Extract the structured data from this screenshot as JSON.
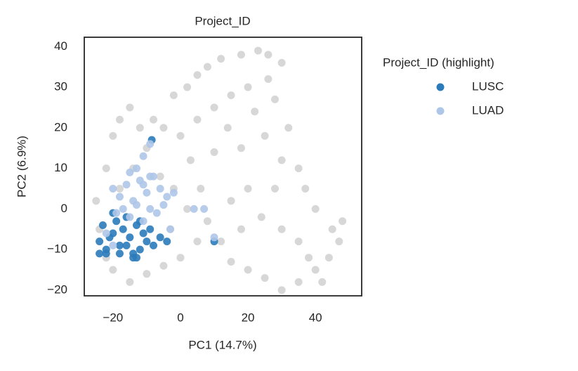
{
  "chart_data": {
    "type": "scatter",
    "title": "Project_ID",
    "xlabel": "PC1 (14.7%)",
    "ylabel": "PC2 (6.9%)",
    "legend_title": "Project_ID (highlight)",
    "xlim": [
      -28.5,
      53.7
    ],
    "ylim": [
      -21.4,
      42.3
    ],
    "xticks": [
      {
        "value": -20,
        "label": "−20"
      },
      0,
      20,
      40
    ],
    "yticks": [
      {
        "value": -20,
        "label": "−20"
      },
      {
        "value": -10,
        "label": "−10"
      },
      0,
      10,
      20,
      30,
      40
    ],
    "series": [
      {
        "color": "#d3d3d3",
        "x": [
          -25,
          -24,
          -22,
          -20,
          -18,
          -15,
          -12,
          -10,
          -8,
          -5,
          -20,
          -15,
          -10,
          -5,
          0,
          -22,
          -18,
          -14,
          -6,
          -2,
          -3,
          2,
          5,
          3,
          0,
          -2,
          2,
          5,
          8,
          12,
          18,
          23,
          26,
          30,
          26,
          20,
          15,
          10,
          5,
          14,
          22,
          28,
          32,
          25,
          18,
          10,
          30,
          37,
          35,
          40,
          45,
          48,
          44,
          40,
          35,
          30,
          25,
          20,
          15,
          12,
          18,
          24,
          30,
          35,
          28,
          20,
          15,
          8,
          6,
          38,
          47,
          42
        ],
        "y": [
          2,
          -5,
          10,
          18,
          22,
          25,
          20,
          15,
          22,
          20,
          -15,
          -18,
          -16,
          -14,
          -12,
          -12,
          5,
          10,
          8,
          5,
          -5,
          0,
          -8,
          12,
          18,
          28,
          30,
          33,
          35,
          37,
          38,
          39,
          38,
          36,
          32,
          30,
          28,
          25,
          22,
          20,
          24,
          27,
          20,
          18,
          15,
          14,
          12,
          5,
          10,
          0,
          -5,
          -3,
          -12,
          -15,
          -18,
          -20,
          -17,
          -15,
          -13,
          -8,
          -5,
          -2,
          -5,
          -8,
          5,
          5,
          2,
          -3,
          5,
          -12,
          -8,
          -18
        ]
      },
      {
        "name": "LUSC",
        "color": "#2b7bba",
        "x": [
          -24,
          -22,
          -20,
          -18,
          -16,
          -14,
          -12,
          -10,
          -8,
          -23,
          -21,
          -19,
          -17,
          -15,
          -13,
          -11,
          -9,
          -22,
          -18,
          -14,
          -12,
          -16,
          -20,
          -8.5,
          -4,
          10,
          -6,
          -24,
          -13
        ],
        "y": [
          -8,
          -10,
          -6,
          -11,
          -9,
          -12,
          -10,
          -8,
          -9,
          -4,
          -7,
          -3,
          -5,
          -7,
          -4,
          -6,
          -5,
          -11,
          -9,
          -11,
          -3,
          -2,
          -1,
          17,
          -8,
          -8,
          -7,
          -11,
          -12
        ]
      },
      {
        "name": "LUAD",
        "color": "#aec7e8",
        "x": [
          -20,
          -18,
          -16,
          -14,
          -12,
          -10,
          -8,
          -6,
          -4,
          -2,
          -19,
          -17,
          -15,
          -13,
          -11,
          -9,
          -7,
          -5,
          -15,
          -13,
          -11,
          -9,
          -11,
          -9,
          4,
          7,
          10,
          -22,
          -20,
          -3
        ],
        "y": [
          5,
          3,
          6,
          2,
          7,
          4,
          8,
          5,
          3,
          4,
          -1,
          0,
          -2,
          1,
          -3,
          0,
          -1,
          1,
          9,
          10,
          6,
          8,
          13,
          16,
          0,
          0,
          -7,
          -6,
          -9,
          -5
        ]
      }
    ]
  }
}
